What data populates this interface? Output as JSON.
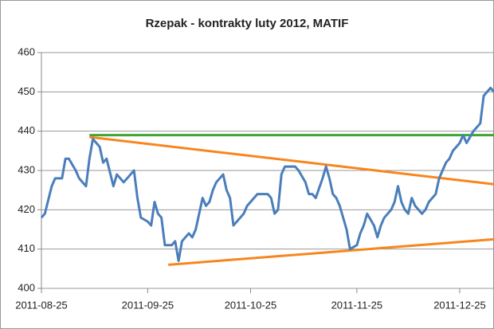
{
  "chart_data": {
    "type": "line",
    "title": "Rzepak - kontrakty luty 2012, MATIF",
    "x": [
      "2011-08-25",
      "2011-08-26",
      "2011-08-28",
      "2011-08-29",
      "2011-08-31",
      "2011-09-01",
      "2011-09-02",
      "2011-09-04",
      "2011-09-05",
      "2011-09-07",
      "2011-09-08",
      "2011-09-09",
      "2011-09-11",
      "2011-09-12",
      "2011-09-13",
      "2011-09-15",
      "2011-09-16",
      "2011-09-17",
      "2011-09-18",
      "2011-09-20",
      "2011-09-21",
      "2011-09-22",
      "2011-09-23",
      "2011-09-25",
      "2011-09-26",
      "2011-09-27",
      "2011-09-28",
      "2011-09-29",
      "2011-09-30",
      "2011-10-02",
      "2011-10-03",
      "2011-10-04",
      "2011-10-05",
      "2011-10-07",
      "2011-10-08",
      "2011-10-09",
      "2011-10-11",
      "2011-10-12",
      "2011-10-13",
      "2011-10-14",
      "2011-10-15",
      "2011-10-17",
      "2011-10-18",
      "2011-10-19",
      "2011-10-20",
      "2011-10-21",
      "2011-10-23",
      "2011-10-24",
      "2011-10-25",
      "2011-10-26",
      "2011-10-27",
      "2011-10-29",
      "2011-10-30",
      "2011-10-31",
      "2011-11-01",
      "2011-11-02",
      "2011-11-03",
      "2011-11-04",
      "2011-11-06",
      "2011-11-07",
      "2011-11-08",
      "2011-11-10",
      "2011-11-11",
      "2011-11-12",
      "2011-11-13",
      "2011-11-15",
      "2011-11-16",
      "2011-11-17",
      "2011-11-18",
      "2011-11-19",
      "2011-11-20",
      "2011-11-22",
      "2011-11-23",
      "2011-11-25",
      "2011-11-26",
      "2011-11-27",
      "2011-11-28",
      "2011-11-30",
      "2011-12-01",
      "2011-12-02",
      "2011-12-03",
      "2011-12-05",
      "2011-12-06",
      "2011-12-07",
      "2011-12-08",
      "2011-12-09",
      "2011-12-10",
      "2011-12-11",
      "2011-12-12",
      "2011-12-14",
      "2011-12-15",
      "2011-12-16",
      "2011-12-18",
      "2011-12-19",
      "2011-12-21",
      "2011-12-22",
      "2011-12-23",
      "2011-12-25",
      "2011-12-26",
      "2011-12-27",
      "2011-12-29",
      "2011-12-30",
      "2011-12-31",
      "2012-01-01",
      "2012-01-03",
      "2012-01-04"
    ],
    "series": [
      {
        "color": "#4a7ebb",
        "values": [
          418,
          419,
          426,
          428,
          428,
          433,
          433,
          430,
          428,
          426,
          433,
          438,
          436,
          432,
          433,
          426,
          429,
          428,
          427,
          429,
          430,
          423,
          418,
          417,
          416,
          422,
          419,
          418,
          411,
          411,
          412,
          407,
          412,
          414,
          413,
          415,
          423,
          421,
          422,
          425,
          427,
          429,
          425,
          423,
          416,
          417,
          419,
          421,
          422,
          423,
          424,
          424,
          424,
          423,
          419,
          420,
          429,
          431,
          431,
          431,
          430,
          427,
          424,
          424,
          423,
          428,
          431,
          428,
          424,
          423,
          421,
          415,
          410,
          411,
          414,
          416,
          419,
          416,
          413,
          416,
          418,
          420,
          422,
          426,
          422,
          420,
          419,
          423,
          421,
          419,
          420,
          422,
          424,
          428,
          432,
          433,
          435,
          437,
          439,
          437,
          440,
          441,
          442,
          449,
          451,
          450
        ]
      }
    ],
    "lines": [
      {
        "color": "#3fa535",
        "x": [
          "2011-09-08",
          "2012-01-04"
        ],
        "values": [
          439,
          439
        ]
      },
      {
        "color": "#f7861e",
        "x": [
          "2011-09-08",
          "2012-01-04"
        ],
        "values": [
          438.5,
          426.5
        ]
      },
      {
        "color": "#f7861e",
        "x": [
          "2011-10-01",
          "2012-01-04"
        ],
        "values": [
          406,
          412.5
        ]
      }
    ],
    "xlim": [
      "2011-08-25",
      "2012-01-04"
    ],
    "xticks": [
      "2011-08-25",
      "2011-09-25",
      "2011-10-25",
      "2011-11-25",
      "2011-12-25"
    ],
    "ylim": [
      400,
      460
    ],
    "yticks": [
      400,
      410,
      420,
      430,
      440,
      450,
      460
    ],
    "grid": true
  }
}
